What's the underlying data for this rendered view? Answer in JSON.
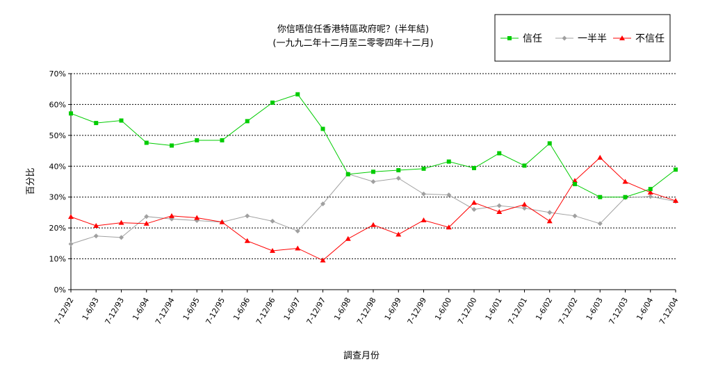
{
  "chart_data": {
    "type": "line",
    "title": "你信唔信任香港特區政府呢？(半年結)",
    "subtitle": "(一九九二年十二月至二零零四年十二月)",
    "xlabel": "調查月份",
    "ylabel": "百分比",
    "ylim": [
      0,
      70
    ],
    "yticks": [
      "0%",
      "10%",
      "20%",
      "30%",
      "40%",
      "50%",
      "60%",
      "70%"
    ],
    "grid": true,
    "legend_position": "top-right",
    "categories": [
      "7-12/92",
      "1-6/93",
      "7-12/93",
      "1-6/94",
      "7-12/94",
      "1-6/95",
      "7-12/95",
      "1-6/96",
      "7-12/96",
      "1-6/97",
      "7-12/97",
      "1-6/98",
      "7-12/98",
      "1-6/99",
      "7-12/99",
      "1-6/00",
      "7-12/00",
      "1-6/01",
      "7-12/01",
      "1-6/02",
      "7-12/02",
      "1-6/03",
      "7-12/03",
      "1-6/04",
      "7-12/04"
    ],
    "series": [
      {
        "name": "信任",
        "color": "#00cc00",
        "marker": "square",
        "values": [
          57.1,
          54.0,
          54.8,
          47.6,
          46.7,
          48.4,
          48.4,
          54.6,
          60.6,
          63.3,
          52.1,
          37.4,
          38.2,
          38.7,
          39.2,
          41.5,
          39.4,
          44.2,
          40.2,
          47.4,
          34.2,
          30.0,
          30.0,
          32.6,
          38.9
        ]
      },
      {
        "name": "一半半",
        "color": "#a0a0a0",
        "marker": "diamond",
        "values": [
          14.8,
          17.4,
          16.9,
          23.7,
          22.9,
          22.4,
          21.9,
          23.9,
          22.2,
          19.0,
          27.8,
          37.5,
          35.0,
          36.1,
          31.0,
          30.7,
          26.0,
          27.2,
          26.4,
          25.0,
          23.9,
          21.4,
          29.8,
          30.2,
          28.6
        ]
      },
      {
        "name": "不信任",
        "color": "#ff0000",
        "marker": "triangle",
        "values": [
          23.6,
          20.7,
          21.7,
          21.4,
          23.9,
          23.3,
          21.9,
          15.8,
          12.6,
          13.4,
          9.5,
          16.5,
          21.0,
          17.9,
          22.5,
          20.2,
          28.2,
          25.2,
          27.6,
          22.2,
          35.3,
          42.8,
          35.0,
          31.5,
          28.8
        ]
      }
    ]
  }
}
